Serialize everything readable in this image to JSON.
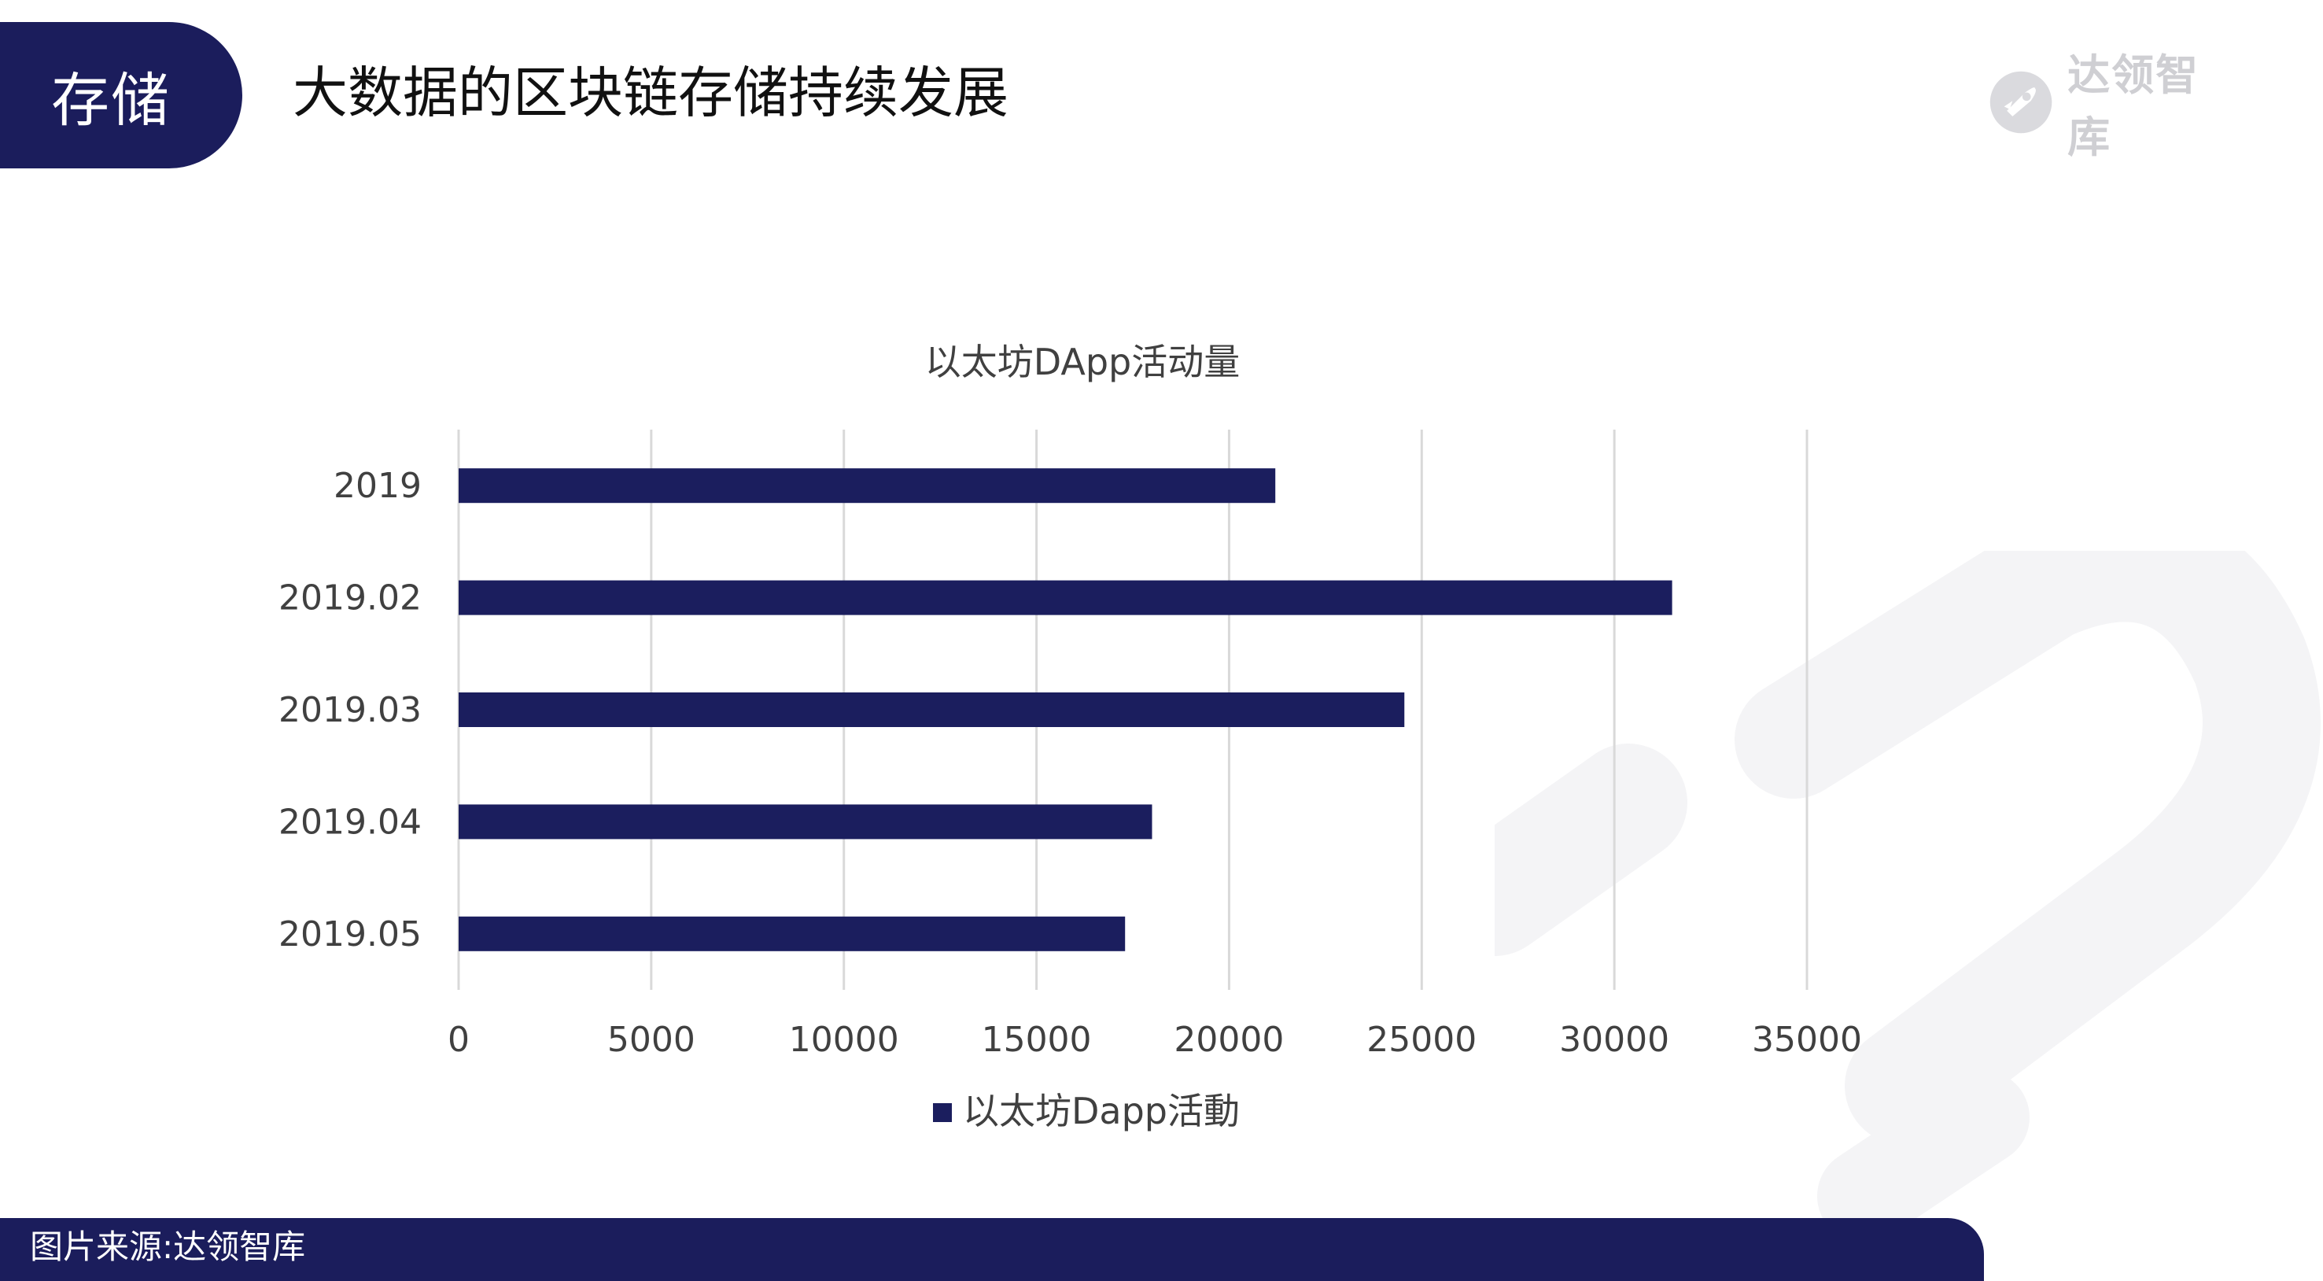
{
  "header": {
    "section_tab": "存储",
    "title": "大数据的区块链存储持续发展",
    "logo_text": "达领智库",
    "logo_icon": "rocket-badge-icon"
  },
  "colors": {
    "navy": "#1b1d5c",
    "bar": "#1b1e5e",
    "grid": "#d9d9d9",
    "watermark": "#f4f4f6",
    "logo_gray": "#cfcfd3"
  },
  "chart_data": {
    "type": "bar",
    "orientation": "horizontal",
    "title": "以太坊DApp活动量",
    "categories": [
      "2019",
      "2019.02",
      "2019.03",
      "2019.04",
      "2019.05"
    ],
    "series": [
      {
        "name": "以太坊Dapp活動",
        "values": [
          21200,
          31500,
          24550,
          18000,
          17300
        ]
      }
    ],
    "xlim": [
      0,
      35000
    ],
    "xticks": [
      0,
      5000,
      10000,
      15000,
      20000,
      25000,
      30000,
      35000
    ],
    "xtick_labels": [
      "0",
      "5000",
      "10000",
      "15000",
      "20000",
      "25000",
      "30000",
      "35000"
    ],
    "grid": "vertical",
    "legend": "bottom-center"
  },
  "footer": {
    "source": "图片来源:达领智库"
  }
}
